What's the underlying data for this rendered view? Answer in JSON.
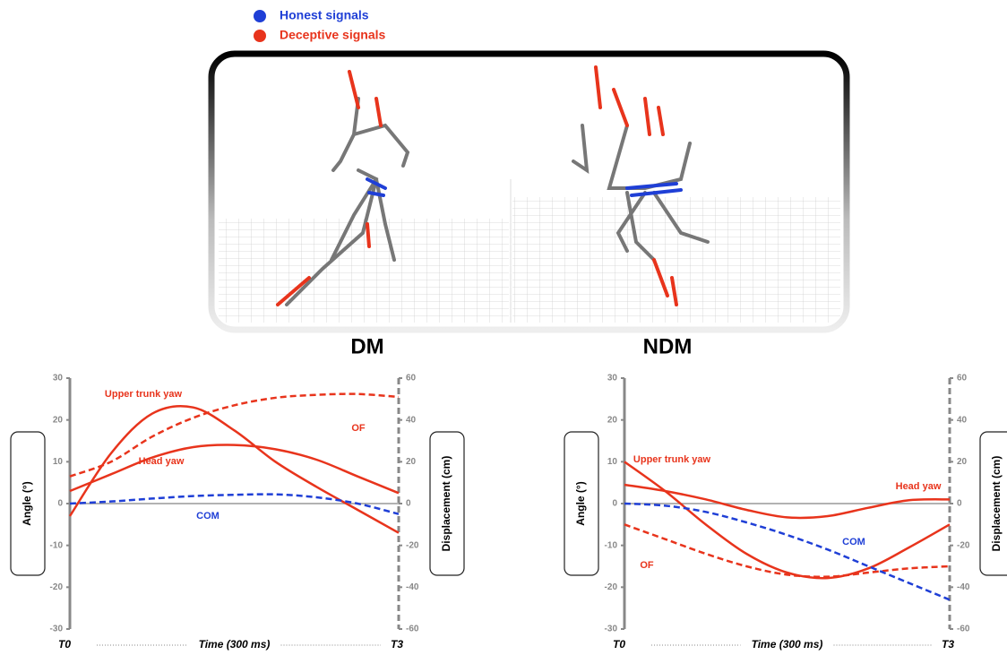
{
  "legend": [
    {
      "label": "Honest signals",
      "color": "#1f3fd6"
    },
    {
      "label": "Deceptive signals",
      "color": "#e8341c"
    }
  ],
  "chart_data": [
    {
      "type": "line",
      "title": "DM",
      "xlabel": "Time (300 ms)",
      "ylabel": "Angle (°)",
      "y2label": "Displacement (cm)",
      "categories": [
        "T0",
        null,
        null,
        null,
        null,
        null,
        null,
        null,
        "T3"
      ],
      "ylim": [
        -30,
        30
      ],
      "yticks": [
        -30,
        -20,
        -10,
        0,
        10,
        20,
        30
      ],
      "y2lim": [
        -60,
        60
      ],
      "y2ticks": [
        -60,
        -40,
        -20,
        0,
        20,
        40,
        60
      ],
      "series": [
        {
          "name": "Upper trunk yaw",
          "color": "#e8341c",
          "linestyle": "solid",
          "values": [
            -3,
            12,
            21.5,
            23,
            17.5,
            10,
            4,
            -1.5,
            -7
          ]
        },
        {
          "name": "Head yaw",
          "color": "#e8341c",
          "linestyle": "solid",
          "values": [
            3,
            7,
            11,
            13.5,
            14,
            13,
            10.5,
            6.5,
            2.5
          ]
        },
        {
          "name": "OF",
          "color": "#e8341c",
          "linestyle": "dashed",
          "axis": "y2",
          "values": [
            13,
            20,
            32,
            41,
            47,
            50.6,
            52,
            52.4,
            51
          ]
        },
        {
          "name": "COM",
          "color": "#1f3fd6",
          "linestyle": "dashed",
          "axis": "y2",
          "values": [
            0,
            1,
            2.4,
            3.6,
            4.2,
            4.4,
            3,
            0,
            -5
          ]
        }
      ]
    },
    {
      "type": "line",
      "title": "NDM",
      "xlabel": "Time (300 ms)",
      "ylabel": "Angle (°)",
      "y2label": "Displacement (cm)",
      "categories": [
        "T0",
        null,
        null,
        null,
        null,
        null,
        null,
        null,
        "T3"
      ],
      "ylim": [
        -30,
        30
      ],
      "yticks": [
        -30,
        -20,
        -10,
        0,
        10,
        20,
        30
      ],
      "y2lim": [
        -60,
        60
      ],
      "y2ticks": [
        -60,
        -40,
        -20,
        0,
        20,
        40,
        60
      ],
      "series": [
        {
          "name": "Upper trunk yaw",
          "color": "#e8341c",
          "linestyle": "solid",
          "values": [
            10,
            3,
            -5,
            -12,
            -16.5,
            -17.8,
            -15.5,
            -10.5,
            -5
          ]
        },
        {
          "name": "Head yaw",
          "color": "#e8341c",
          "linestyle": "solid",
          "values": [
            4.5,
            3,
            1,
            -1.5,
            -3.3,
            -3,
            -1,
            0.8,
            1
          ]
        },
        {
          "name": "OF",
          "color": "#e8341c",
          "linestyle": "dashed",
          "axis": "y2",
          "values": [
            -10,
            -17,
            -24,
            -30,
            -34,
            -35,
            -33,
            -31,
            -30
          ]
        },
        {
          "name": "COM",
          "color": "#1f3fd6",
          "linestyle": "dashed",
          "axis": "y2",
          "values": [
            0,
            -1,
            -4,
            -9,
            -15,
            -22,
            -30,
            -38,
            -46
          ]
        }
      ]
    }
  ]
}
